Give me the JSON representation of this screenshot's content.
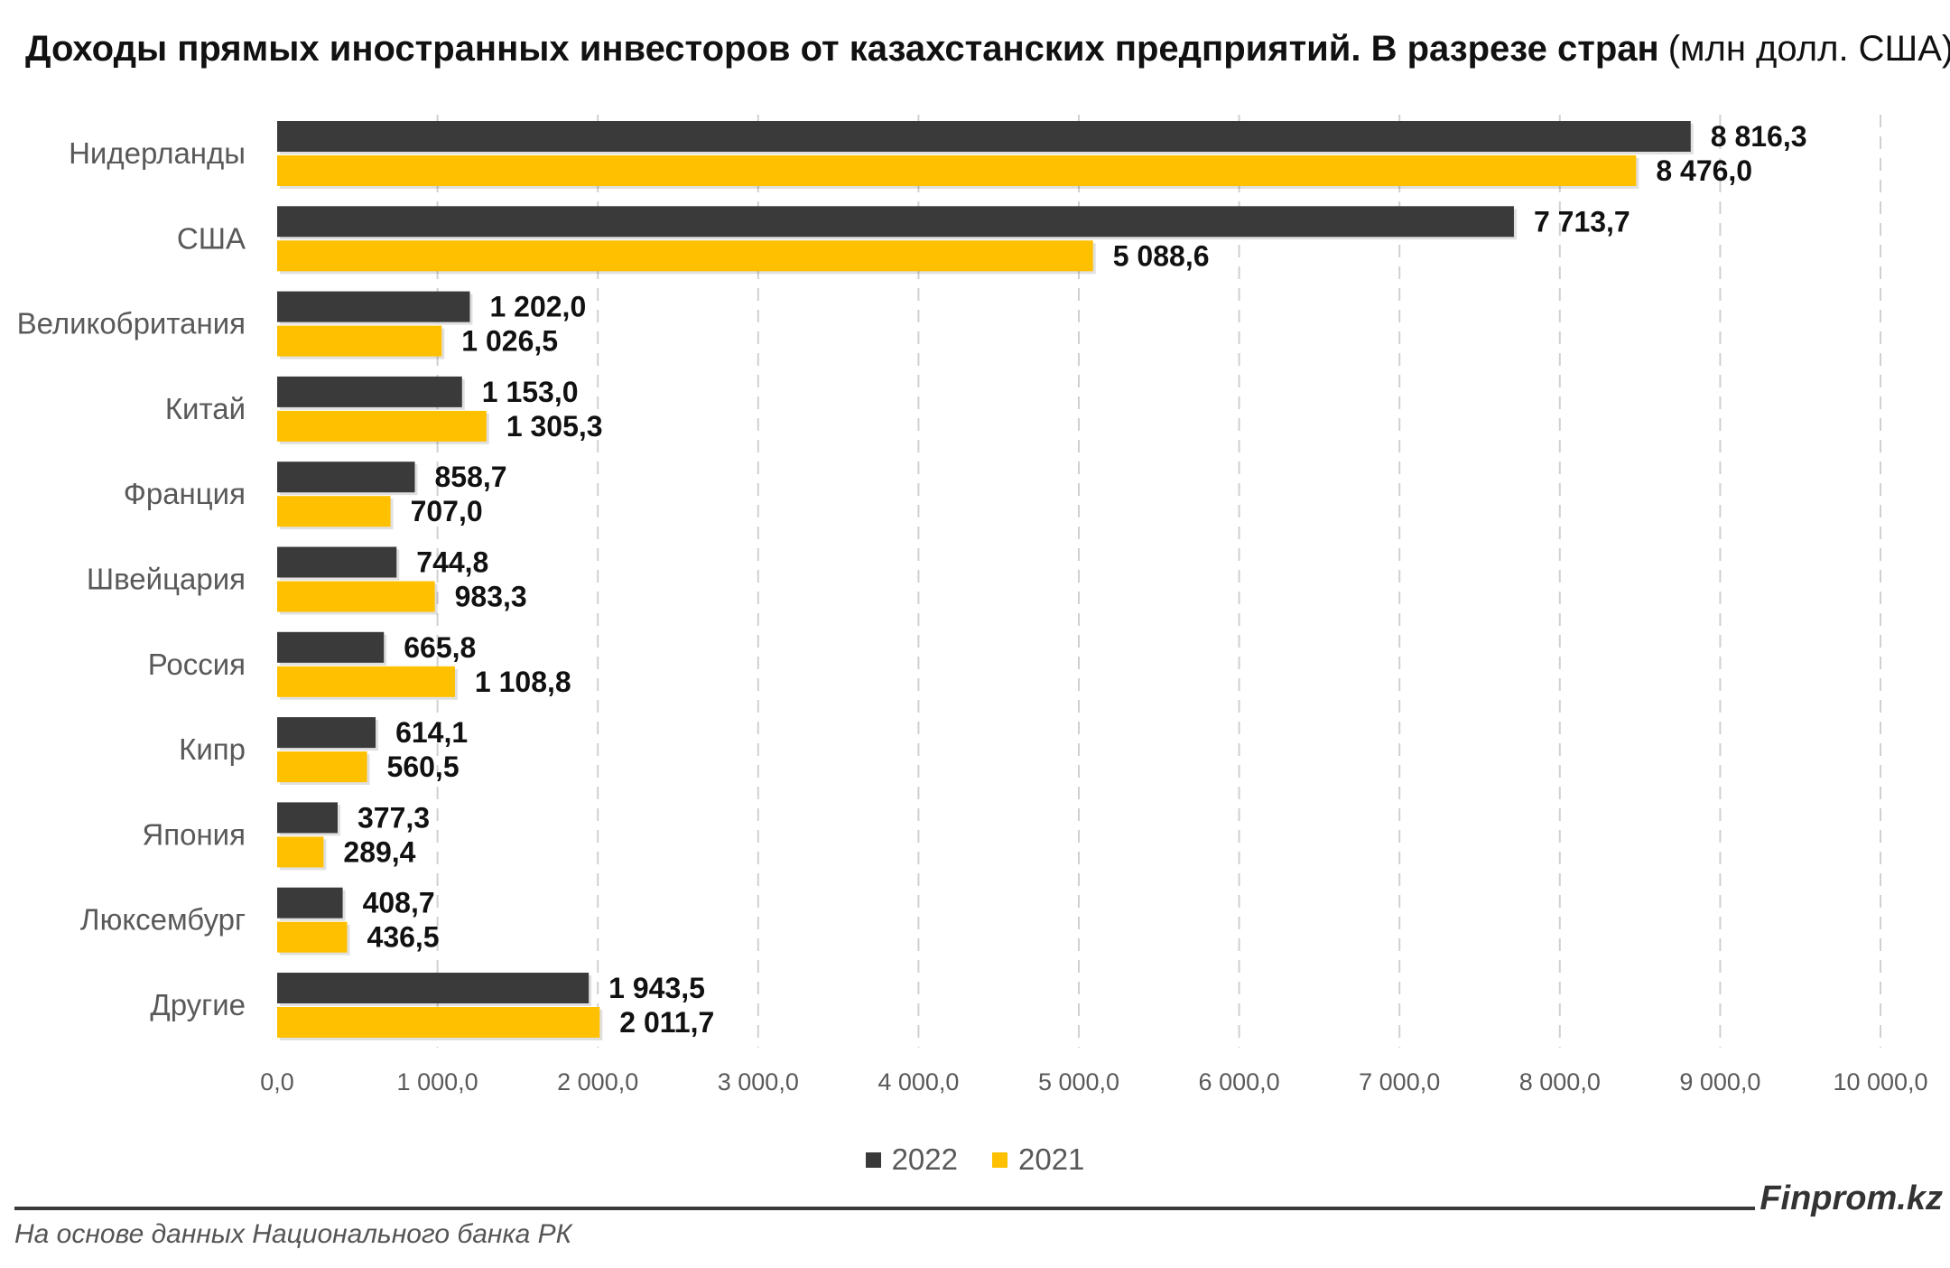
{
  "title": {
    "main": "Доходы прямых иностранных инвесторов от казахстанских предприятий. В разрезе стран",
    "unit": "(млн долл. США)"
  },
  "colors": {
    "series_2022": "#3a3a3a",
    "series_2021": "#ffc000",
    "grid": "#d0d0d0"
  },
  "legend": {
    "items": [
      "2022",
      "2021"
    ]
  },
  "brand": "Finprom.kz",
  "source": "На основе данных Национального банка РК",
  "chart_data": {
    "type": "bar",
    "orientation": "horizontal",
    "categories": [
      "Нидерланды",
      "США",
      "Великобритания",
      "Китай",
      "Франция",
      "Швейцария",
      "Россия",
      "Кипр",
      "Япония",
      "Люксембург",
      "Другие"
    ],
    "series": [
      {
        "name": "2022",
        "values": [
          8816.3,
          7713.7,
          1202.0,
          1153.0,
          858.7,
          744.8,
          665.8,
          614.1,
          377.3,
          408.7,
          1943.5
        ],
        "labels": [
          "8 816,3",
          "7 713,7",
          "1 202,0",
          "1 153,0",
          "858,7",
          "744,8",
          "665,8",
          "614,1",
          "377,3",
          "408,7",
          "1 943,5"
        ]
      },
      {
        "name": "2021",
        "values": [
          8476.0,
          5088.6,
          1026.5,
          1305.3,
          707.0,
          983.3,
          1108.8,
          560.5,
          289.4,
          436.5,
          2011.7
        ],
        "labels": [
          "8 476,0",
          "5 088,6",
          "1 026,5",
          "1 305,3",
          "707,0",
          "983,3",
          "1 108,8",
          "560,5",
          "289,4",
          "436,5",
          "2 011,7"
        ]
      }
    ],
    "x_ticks": [
      0,
      1000,
      2000,
      3000,
      4000,
      5000,
      6000,
      7000,
      8000,
      9000,
      10000
    ],
    "x_tick_labels": [
      "0,0",
      "1 000,0",
      "2 000,0",
      "3 000,0",
      "4 000,0",
      "5 000,0",
      "6 000,0",
      "7 000,0",
      "8 000,0",
      "9 000,0",
      "10 000,0"
    ],
    "xlim": [
      0,
      10000
    ],
    "grid": "vertical-dashed",
    "legend_position": "bottom"
  }
}
